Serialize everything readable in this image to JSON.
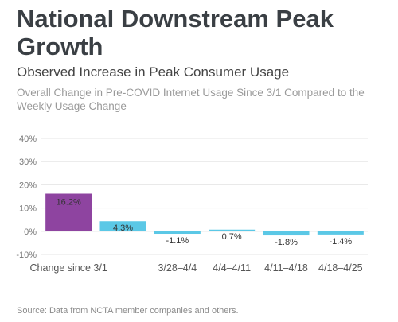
{
  "header": {
    "title": "National Downstream Peak Growth",
    "subtitle": "Observed Increase in Peak Consumer Usage",
    "note": "Overall Change in Pre-COVID Internet Usage Since 3/1 Compared to the Weekly Usage Change"
  },
  "footer": {
    "source": "Source: Data from NCTA member companies and others."
  },
  "chart_data": {
    "type": "bar",
    "title": "National Downstream Peak Growth",
    "subtitle": "Observed Increase in Peak Consumer Usage",
    "xlabel": "",
    "ylabel": "",
    "ylim": [
      -10,
      40
    ],
    "yticks": [
      -10,
      0,
      10,
      20,
      30,
      40
    ],
    "ytick_labels": [
      "-10%",
      "0%",
      "10%",
      "20%",
      "30%",
      "40%"
    ],
    "grid": true,
    "legend": "none",
    "categories": [
      "Change since 3/1",
      "",
      "3/28–4/4",
      "4/4–4/11",
      "4/11–4/18",
      "4/18–4/25"
    ],
    "values": [
      16.2,
      4.3,
      -1.1,
      0.7,
      -1.8,
      -1.4
    ],
    "data_labels": [
      "16.2%",
      "4.3%",
      "-1.1%",
      "0.7%",
      "-1.8%",
      "-1.4%"
    ],
    "colors": [
      "#8e44a0",
      "#5bc8e6",
      "#5bc8e6",
      "#5bc8e6",
      "#5bc8e6",
      "#5bc8e6"
    ]
  }
}
